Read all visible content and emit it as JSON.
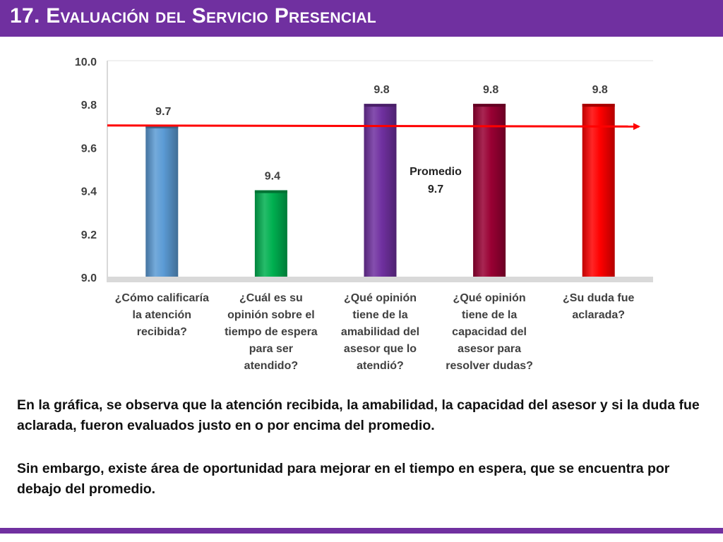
{
  "title": "17. Evaluación del Servicio Presencial",
  "chart_data": {
    "type": "bar",
    "categories": [
      [
        "¿Cómo calificaría",
        "la atención",
        "recibida?"
      ],
      [
        "¿Cuál es su",
        "opinión sobre el",
        "tiempo de espera",
        "para ser",
        "atendido?"
      ],
      [
        "¿Qué opinión",
        "tiene de la",
        "amabilidad del",
        "asesor que lo",
        "atendió?"
      ],
      [
        "¿Qué opinión",
        "tiene de la",
        "capacidad del",
        "asesor para",
        "resolver dudas?"
      ],
      [
        "¿Su duda fue",
        "aclarada?"
      ]
    ],
    "values": [
      9.7,
      9.4,
      9.8,
      9.8,
      9.8
    ],
    "value_labels": [
      "9.7",
      "9.4",
      "9.8",
      "9.8",
      "9.8"
    ],
    "bar_colors": [
      "#5b9bd5",
      "#00b050",
      "#7030a0",
      "#990033",
      "#ff0000"
    ],
    "ylim": [
      9.0,
      10.0
    ],
    "yticks": [
      "9.0",
      "9.2",
      "9.4",
      "9.6",
      "9.8",
      "10.0"
    ],
    "grid": false,
    "average": {
      "value": 9.7,
      "label": "Promedio",
      "value_label": "9.7",
      "color": "#ff0000"
    }
  },
  "paragraphs": [
    "En la gráfica, se observa que la atención recibida, la amabilidad, la capacidad del asesor y si la duda fue aclarada, fueron evaluados justo en o por encima del promedio.",
    "Sin embargo, existe área de oportunidad para mejorar en el tiempo en espera, que se encuentra por debajo del promedio."
  ]
}
